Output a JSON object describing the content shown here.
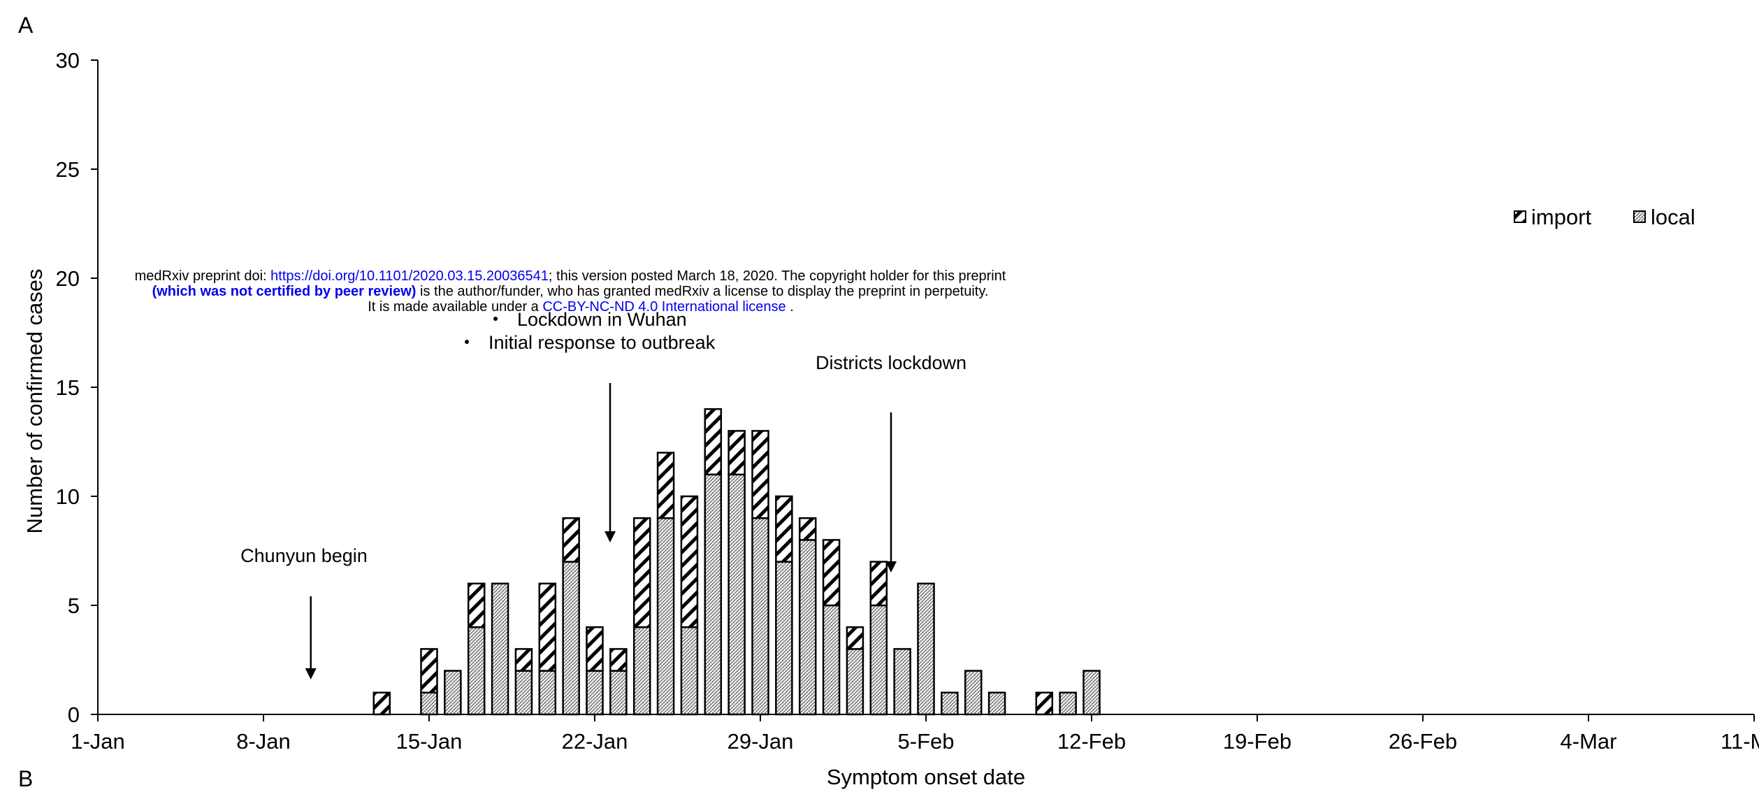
{
  "panel_labels": {
    "a": "A",
    "b": "B"
  },
  "banner": {
    "line1_prefix": "medRxiv preprint doi: ",
    "line1_link": "https://doi.org/10.1101/2020.03.15.20036541",
    "line1_suffix": "; this version posted March 18, 2020. The copyright holder for this preprint",
    "line2_bold": "(which was not certified by peer review)",
    "line2_suffix": " is the author/funder, who has granted medRxiv a license to display the preprint in perpetuity.",
    "line3_prefix": "It is made available under a ",
    "line3_link": "CC-BY-NC-ND 4.0 International license",
    "line3_suffix": " ."
  },
  "colors": {
    "axis": "#000000",
    "bar_stroke": "#000000",
    "background": "#ffffff"
  },
  "chart_data": {
    "type": "bar",
    "stacked": true,
    "xlabel": "Symptom onset date",
    "ylabel": "Number of confirmed cases",
    "ylim": [
      0,
      30
    ],
    "yticks": [
      0,
      5,
      10,
      15,
      20,
      25,
      30
    ],
    "x_start": "1-Jan",
    "x_days": 71,
    "xticks": [
      {
        "day": 0,
        "label": "1-Jan"
      },
      {
        "day": 7,
        "label": "8-Jan"
      },
      {
        "day": 14,
        "label": "15-Jan"
      },
      {
        "day": 21,
        "label": "22-Jan"
      },
      {
        "day": 28,
        "label": "29-Jan"
      },
      {
        "day": 35,
        "label": "5-Feb"
      },
      {
        "day": 42,
        "label": "12-Feb"
      },
      {
        "day": 49,
        "label": "19-Feb"
      },
      {
        "day": 56,
        "label": "26-Feb"
      },
      {
        "day": 63,
        "label": "4-Mar"
      },
      {
        "day": 70,
        "label": "11-Mar"
      }
    ],
    "legend_placement": "top-right",
    "grid": false,
    "categories": [
      "13-Jan",
      "15-Jan",
      "16-Jan",
      "17-Jan",
      "18-Jan",
      "19-Jan",
      "20-Jan",
      "21-Jan",
      "22-Jan",
      "23-Jan",
      "24-Jan",
      "25-Jan",
      "26-Jan",
      "27-Jan",
      "28-Jan",
      "29-Jan",
      "30-Jan",
      "31-Jan",
      "1-Feb",
      "2-Feb",
      "3-Feb",
      "4-Feb",
      "5-Feb",
      "6-Feb",
      "7-Feb",
      "8-Feb",
      "10-Feb",
      "11-Feb",
      "12-Feb"
    ],
    "day_index": [
      12,
      14,
      15,
      16,
      17,
      18,
      19,
      20,
      21,
      22,
      23,
      24,
      25,
      26,
      27,
      28,
      29,
      30,
      31,
      32,
      33,
      34,
      35,
      36,
      37,
      38,
      40,
      41,
      42
    ],
    "series": [
      {
        "name": "local",
        "pattern": "crosshatch",
        "values": [
          0,
          1,
          2,
          4,
          6,
          2,
          2,
          7,
          2,
          2,
          4,
          9,
          4,
          11,
          11,
          9,
          7,
          8,
          5,
          3,
          5,
          3,
          6,
          1,
          2,
          1,
          0,
          1,
          2
        ]
      },
      {
        "name": "import",
        "pattern": "diagonal",
        "values": [
          1,
          2,
          0,
          2,
          0,
          1,
          4,
          2,
          2,
          1,
          5,
          3,
          6,
          3,
          2,
          4,
          3,
          1,
          3,
          1,
          2,
          0,
          0,
          0,
          0,
          0,
          1,
          0,
          0
        ]
      }
    ],
    "annotations": [
      {
        "text": "Chunyun begin",
        "day": 9
      },
      {
        "text": "Lockdown in Wuhan",
        "day": 22
      },
      {
        "text": "Initial response to outbreak",
        "day": 22
      },
      {
        "text": "Districts lockdown",
        "day": 34.5
      }
    ]
  }
}
